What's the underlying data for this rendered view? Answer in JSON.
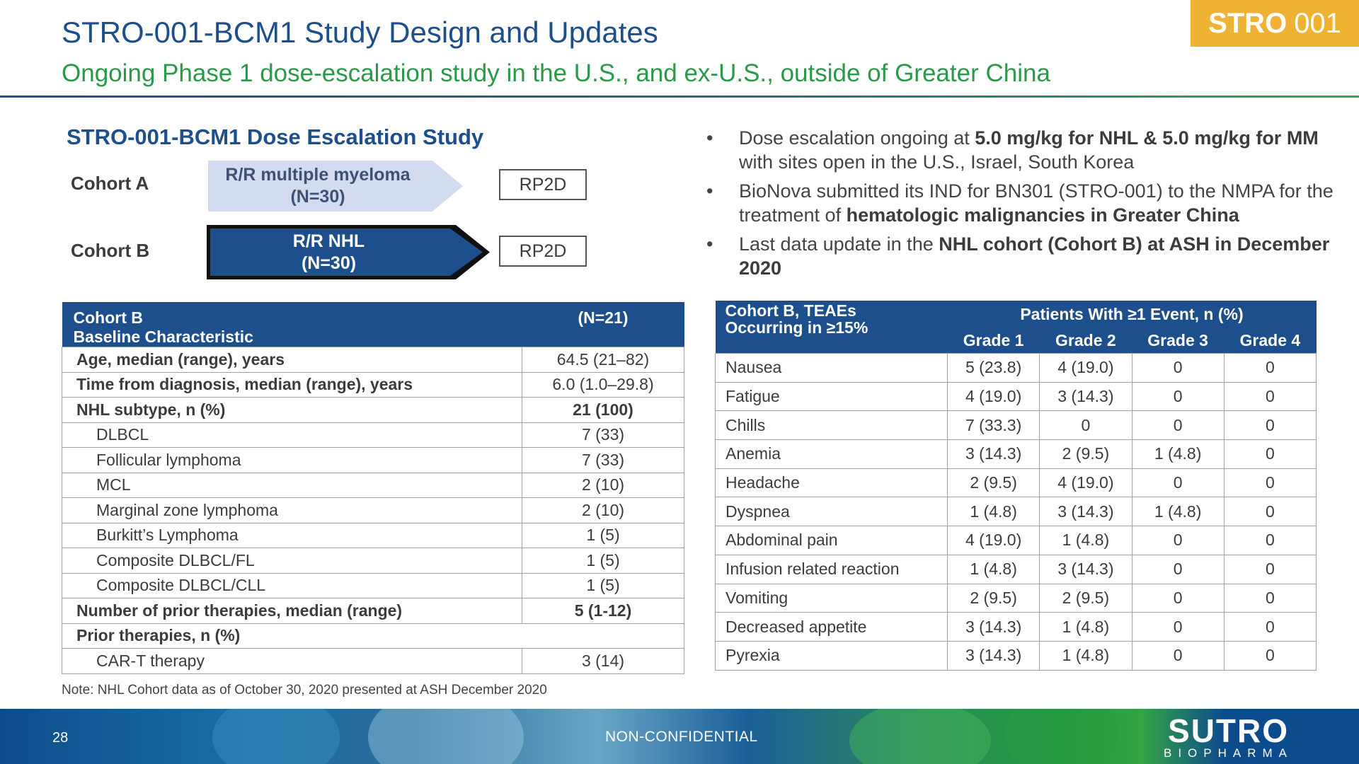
{
  "header": {
    "title": "STRO-001-BCM1 Study Design and Updates",
    "subtitle": "Ongoing Phase 1 dose-escalation study in the U.S., and ex-U.S., outside of Greater China",
    "badge_bold": "STRO",
    "badge_light": "001"
  },
  "study": {
    "heading": "STRO-001-BCM1 Dose Escalation Study",
    "cohort_a": {
      "label": "Cohort A",
      "line1": "R/R multiple myeloma",
      "line2": "(N=30)",
      "endpoint": "RP2D"
    },
    "cohort_b": {
      "label": "Cohort B",
      "line1": "R/R NHL",
      "line2": "(N=30)",
      "endpoint": "RP2D"
    }
  },
  "bullets": {
    "b1": {
      "t1": "Dose escalation ongoing at ",
      "b1": "5.0 mg/kg for NHL & 5.0 mg/kg for MM",
      "t2": " with sites open in the U.S., Israel, South Korea"
    },
    "b2": {
      "t1": "BioNova submitted its IND for BN301 (STRO-001) to the NMPA for the treatment of ",
      "b1": "hematologic malignancies in Greater China"
    },
    "b3": {
      "t1": "Last data update in the ",
      "b1": "NHL cohort (Cohort B) at ASH in December 2020"
    }
  },
  "baseline_table": {
    "header_l1": "Cohort B",
    "header_l2": "Baseline Characteristic",
    "header_value": "(N=21)",
    "rows": [
      {
        "label": "Age, median (range), years",
        "value": "64.5 (21–82)"
      },
      {
        "label": "Time from diagnosis, median (range), years",
        "value": "6.0 (1.0–29.8)"
      },
      {
        "label": "NHL subtype, n (%)",
        "value": "21 (100)"
      },
      {
        "label": "DLBCL",
        "value": "7 (33)"
      },
      {
        "label": "Follicular lymphoma",
        "value": "7 (33)"
      },
      {
        "label": "MCL",
        "value": "2 (10)"
      },
      {
        "label": "Marginal zone lymphoma",
        "value": "2 (10)"
      },
      {
        "label": "Burkitt’s Lymphoma",
        "value": "1 (5)"
      },
      {
        "label": "Composite DLBCL/FL",
        "value": "1 (5)"
      },
      {
        "label": "Composite DLBCL/CLL",
        "value": "1 (5)"
      },
      {
        "label": "Number of prior therapies, median (range)",
        "value": "5 (1-12)"
      },
      {
        "label": "Prior therapies, n (%)",
        "value": ""
      },
      {
        "label": "CAR-T therapy",
        "value": "3 (14)"
      }
    ]
  },
  "teae_table": {
    "corner_l1": "Cohort B, TEAEs",
    "corner_l2": "Occurring in ≥15%",
    "span_header": "Patients With ≥1 Event, n (%)",
    "grades": [
      "Grade 1",
      "Grade 2",
      "Grade 3",
      "Grade 4"
    ],
    "rows": [
      {
        "event": "Nausea",
        "g1": "5 (23.8)",
        "g2": "4 (19.0)",
        "g3": "0",
        "g4": "0"
      },
      {
        "event": "Fatigue",
        "g1": "4 (19.0)",
        "g2": "3 (14.3)",
        "g3": "0",
        "g4": "0"
      },
      {
        "event": "Chills",
        "g1": "7 (33.3)",
        "g2": "0",
        "g3": "0",
        "g4": "0"
      },
      {
        "event": "Anemia",
        "g1": "3 (14.3)",
        "g2": "2 (9.5)",
        "g3": "1 (4.8)",
        "g4": "0"
      },
      {
        "event": "Headache",
        "g1": "2 (9.5)",
        "g2": "4 (19.0)",
        "g3": "0",
        "g4": "0"
      },
      {
        "event": "Dyspnea",
        "g1": "1 (4.8)",
        "g2": "3 (14.3)",
        "g3": "1 (4.8)",
        "g4": "0"
      },
      {
        "event": "Abdominal pain",
        "g1": "4 (19.0)",
        "g2": "1 (4.8)",
        "g3": "0",
        "g4": "0"
      },
      {
        "event": "Infusion related reaction",
        "g1": "1 (4.8)",
        "g2": "3 (14.3)",
        "g3": "0",
        "g4": "0"
      },
      {
        "event": "Vomiting",
        "g1": "2 (9.5)",
        "g2": "2 (9.5)",
        "g3": "0",
        "g4": "0"
      },
      {
        "event": "Decreased appetite",
        "g1": "3 (14.3)",
        "g2": "1 (4.8)",
        "g3": "0",
        "g4": "0"
      },
      {
        "event": "Pyrexia",
        "g1": "3 (14.3)",
        "g2": "1 (4.8)",
        "g3": "0",
        "g4": "0"
      }
    ]
  },
  "note": "Note: NHL Cohort data as of October 30, 2020 presented at ASH December 2020",
  "footer": {
    "page_number": "28",
    "confidentiality": "NON-CONFIDENTIAL",
    "logo_main": "SUTRO",
    "logo_sub": "BIOPHARMA"
  }
}
